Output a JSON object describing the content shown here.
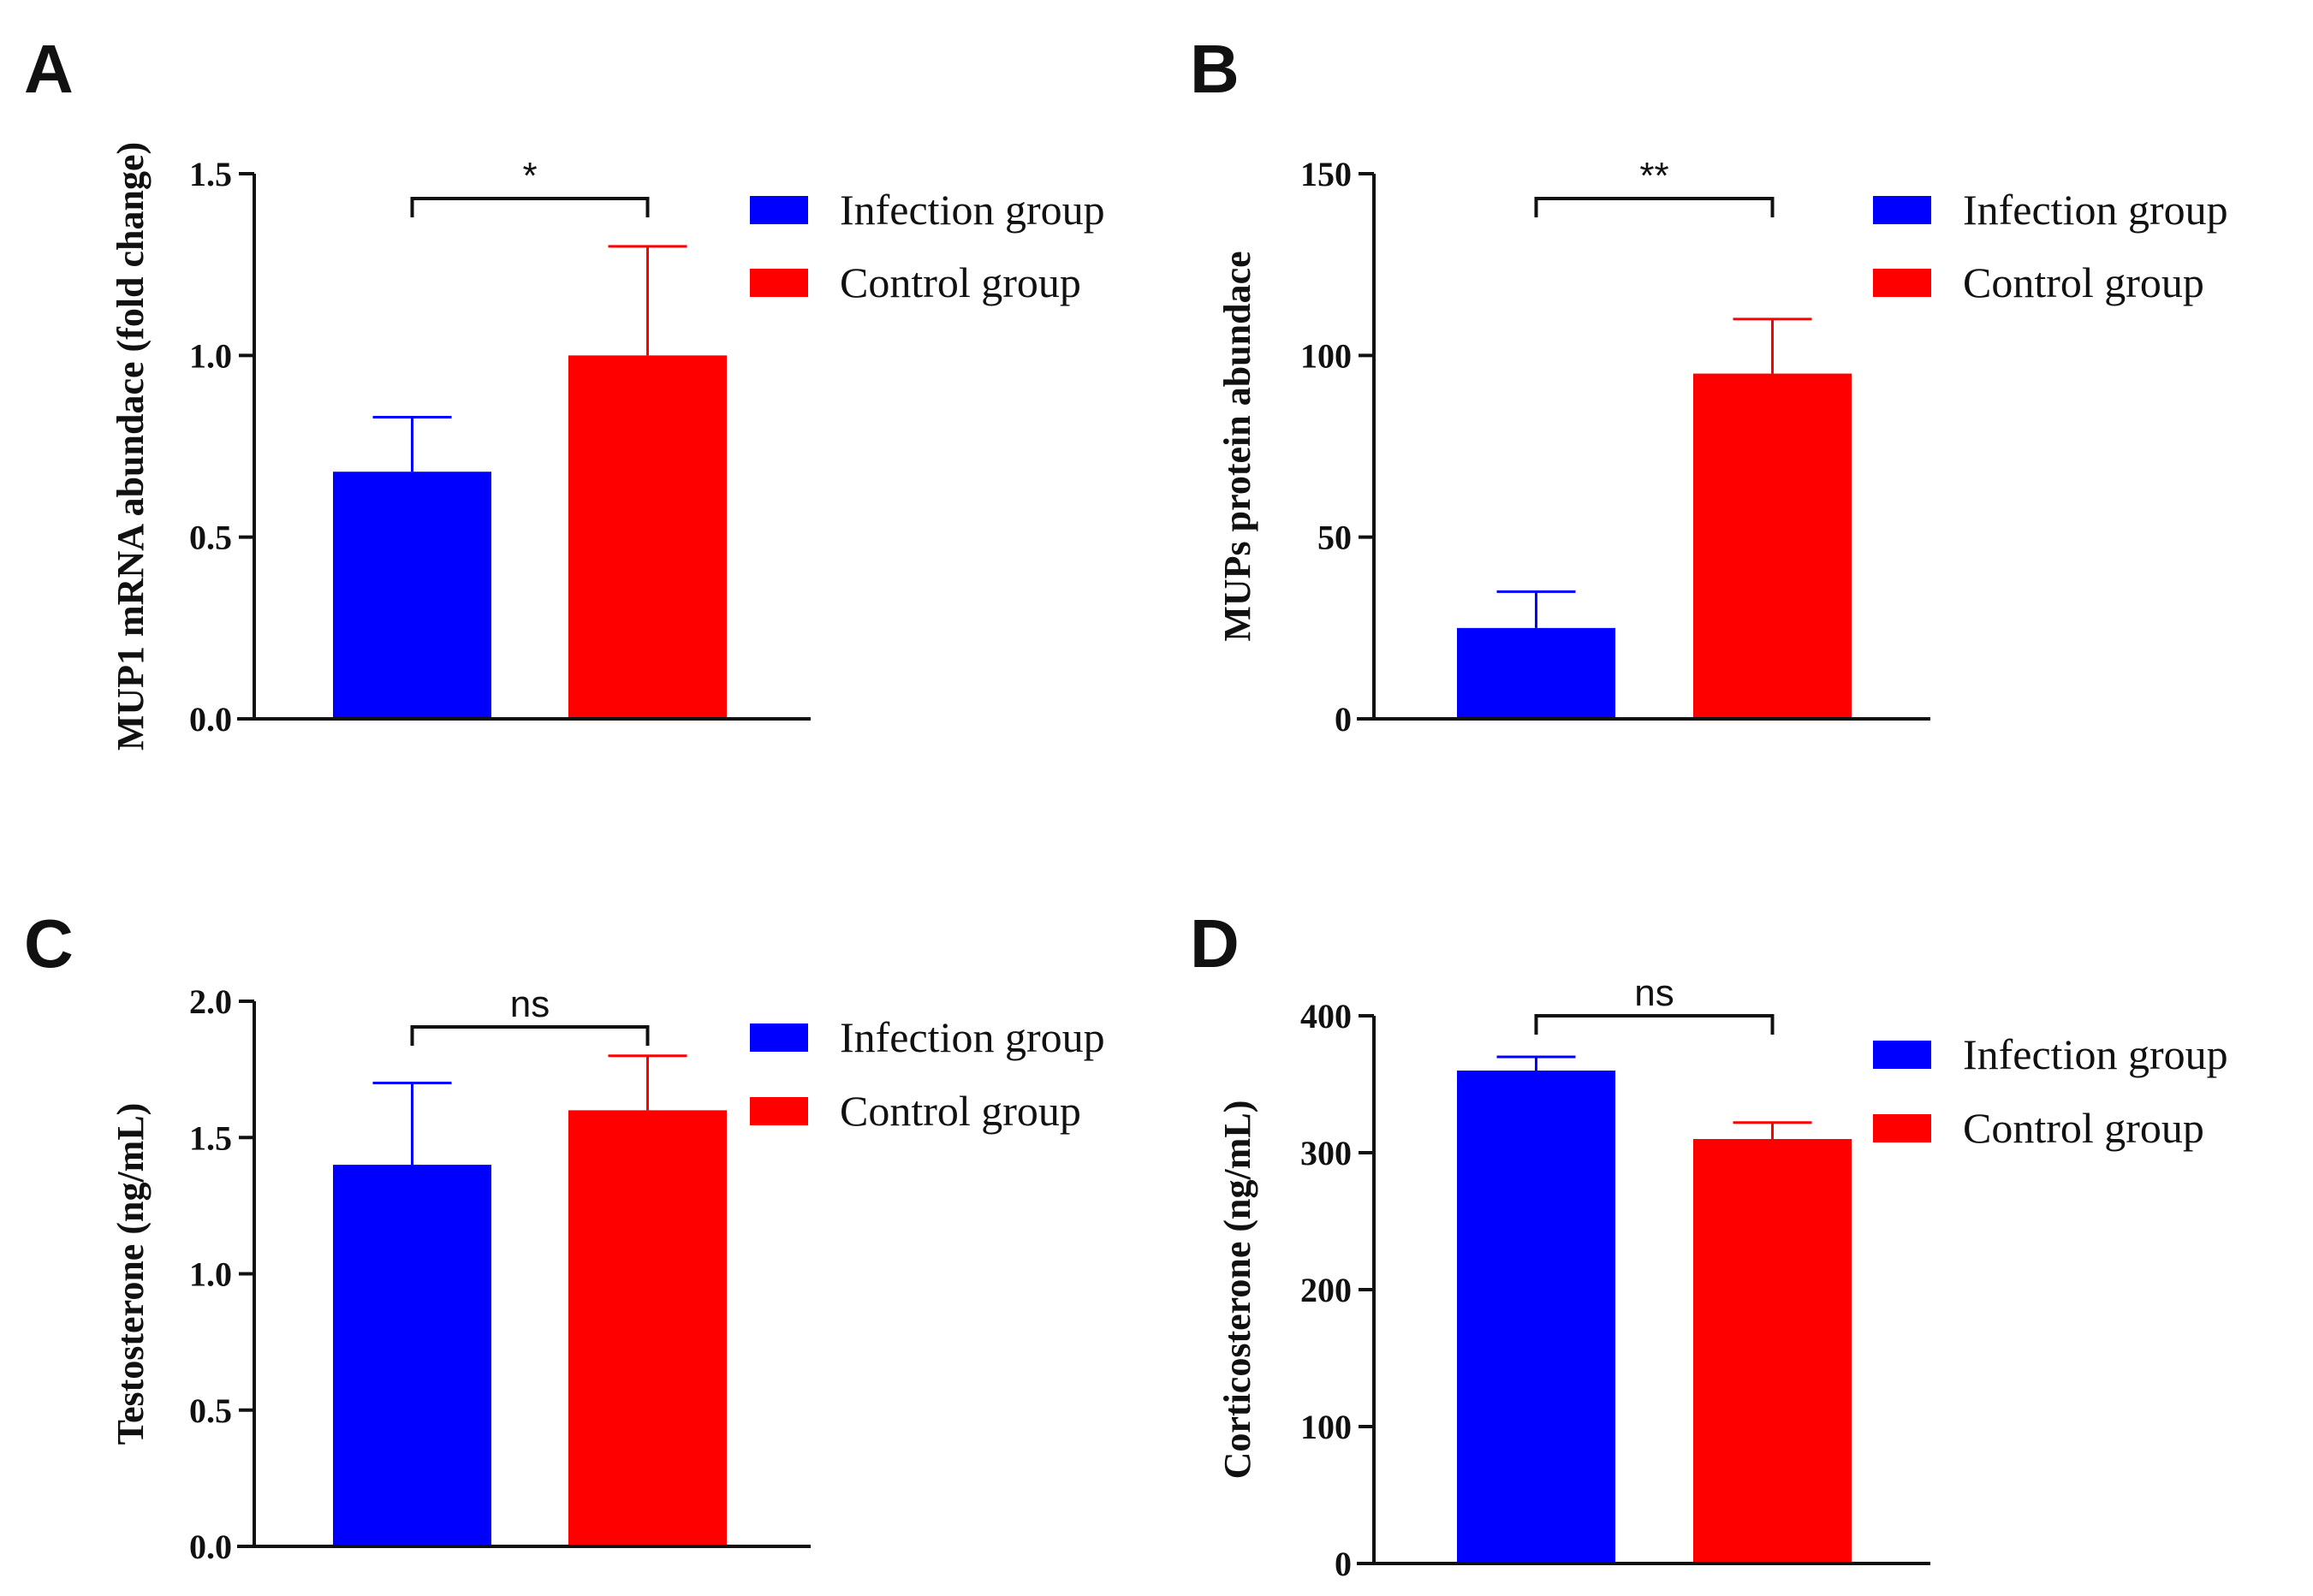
{
  "colors": {
    "infection": "#0000ff",
    "control": "#ff0000",
    "axis": "#111111"
  },
  "chart_data": [
    {
      "type": "bar",
      "panel": "A",
      "categories": [
        "Infection group",
        "Control group"
      ],
      "values": [
        0.68,
        1.0
      ],
      "errors": [
        0.15,
        0.3
      ],
      "colors": [
        "#0000ff",
        "#ff0000"
      ],
      "ylabel": "MUP1 mRNA abundace (fold change)",
      "ylim": [
        0,
        1.5
      ],
      "yticks": [
        0,
        0.5,
        1.0,
        1.5
      ],
      "ytick_labels": [
        "0.0",
        "0.5",
        "1.0",
        "1.5"
      ],
      "significance": "*",
      "legend": [
        "Infection group",
        "Control group"
      ],
      "legend_position": "right"
    },
    {
      "type": "bar",
      "panel": "B",
      "categories": [
        "Infection group",
        "Control group"
      ],
      "values": [
        25,
        95
      ],
      "errors": [
        10,
        15
      ],
      "colors": [
        "#0000ff",
        "#ff0000"
      ],
      "ylabel": "MUPs protein abundace",
      "ylim": [
        0,
        150
      ],
      "yticks": [
        0,
        50,
        100,
        150
      ],
      "ytick_labels": [
        "0",
        "50",
        "100",
        "150"
      ],
      "significance": "**",
      "legend": [
        "Infection group",
        "Control group"
      ],
      "legend_position": "right"
    },
    {
      "type": "bar",
      "panel": "C",
      "categories": [
        "Infection group",
        "Control group"
      ],
      "values": [
        1.4,
        1.6
      ],
      "errors": [
        0.3,
        0.2
      ],
      "colors": [
        "#0000ff",
        "#ff0000"
      ],
      "ylabel": "Testosterone (ng/mL)",
      "ylim": [
        0,
        2.0
      ],
      "yticks": [
        0,
        0.5,
        1.0,
        1.5,
        2.0
      ],
      "ytick_labels": [
        "0.0",
        "0.5",
        "1.0",
        "1.5",
        "2.0"
      ],
      "significance": "ns",
      "legend": [
        "Infection group",
        "Control group"
      ],
      "legend_position": "right"
    },
    {
      "type": "bar",
      "panel": "D",
      "categories": [
        "Infection group",
        "Control group"
      ],
      "values": [
        360,
        310
      ],
      "errors": [
        10,
        12
      ],
      "colors": [
        "#0000ff",
        "#ff0000"
      ],
      "ylabel": "Corticosterone (ng/mL)",
      "ylim": [
        0,
        400
      ],
      "yticks": [
        0,
        100,
        200,
        300,
        400
      ],
      "ytick_labels": [
        "0",
        "100",
        "200",
        "300",
        "400"
      ],
      "significance": "ns",
      "legend": [
        "Infection group",
        "Control group"
      ],
      "legend_position": "right"
    }
  ]
}
